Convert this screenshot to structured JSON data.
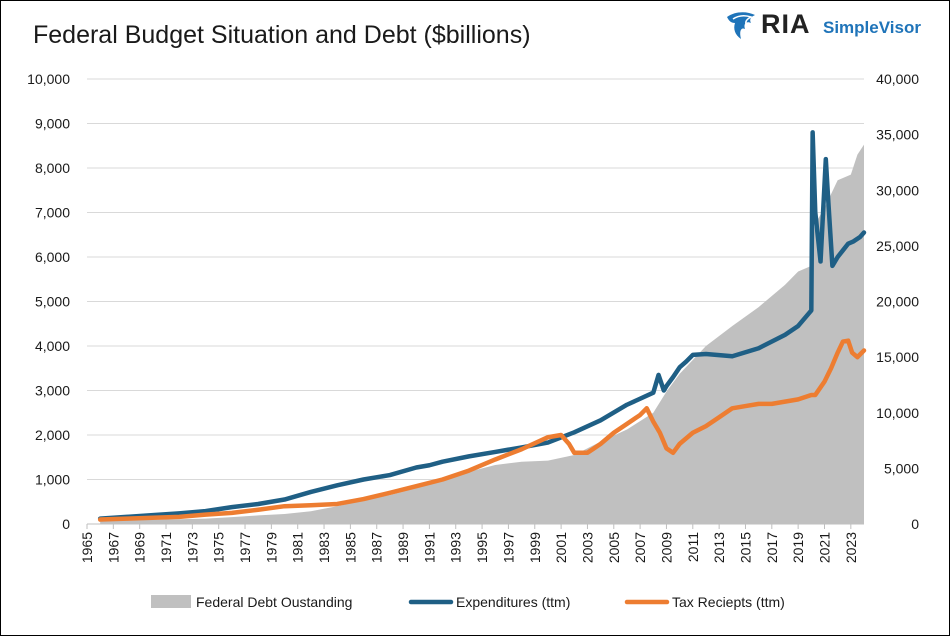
{
  "chart_data": {
    "type": "area+line",
    "title": "Federal Budget Situation and Debt ($billions)",
    "logo": {
      "brand": "RIA",
      "product": "SimpleVisor",
      "colors": {
        "brand": "#222222",
        "product": "#1f74b9",
        "mark": "#1f74b9"
      }
    },
    "xlim": [
      1965,
      2024
    ],
    "x_ticks": [
      "1965",
      "1967",
      "1969",
      "1971",
      "1973",
      "1975",
      "1977",
      "1979",
      "1981",
      "1983",
      "1985",
      "1987",
      "1989",
      "1991",
      "1993",
      "1995",
      "1997",
      "1999",
      "2001",
      "2003",
      "2005",
      "2007",
      "2009",
      "2011",
      "2013",
      "2015",
      "2017",
      "2019",
      "2021",
      "2023"
    ],
    "y_left": {
      "lim": [
        0,
        10000
      ],
      "ticks": [
        "0",
        "1,000",
        "2,000",
        "3,000",
        "4,000",
        "5,000",
        "6,000",
        "7,000",
        "8,000",
        "9,000",
        "10,000"
      ]
    },
    "y_right": {
      "lim": [
        0,
        40000
      ],
      "ticks": [
        "0",
        "5,000",
        "10,000",
        "15,000",
        "20,000",
        "25,000",
        "30,000",
        "35,000",
        "40,000"
      ]
    },
    "grid": true,
    "legend_position": "bottom",
    "series": [
      {
        "name": "Federal Debt Oustanding",
        "type": "area",
        "axis": "right",
        "color": "#c0c0c0",
        "x": [
          1966,
          1968,
          1970,
          1972,
          1974,
          1976,
          1978,
          1980,
          1982,
          1984,
          1986,
          1988,
          1990,
          1992,
          1994,
          1996,
          1998,
          2000,
          2002,
          2004,
          2006,
          2008,
          2009,
          2010,
          2012,
          2014,
          2016,
          2018,
          2019,
          2020,
          2020.25,
          2021,
          2022,
          2023,
          2023.5,
          2024
        ],
        "values": [
          320,
          350,
          380,
          430,
          480,
          620,
          770,
          900,
          1150,
          1600,
          2120,
          2600,
          3210,
          4000,
          4700,
          5300,
          5600,
          5700,
          6200,
          7400,
          8500,
          10000,
          11900,
          13500,
          16000,
          17800,
          19500,
          21500,
          22700,
          23200,
          26900,
          28400,
          30900,
          31400,
          33200,
          34100
        ]
      },
      {
        "name": "Expenditures (ttm)",
        "type": "line",
        "axis": "left",
        "color": "#1f5f85",
        "x": [
          1966,
          1968,
          1970,
          1972,
          1974,
          1976,
          1978,
          1980,
          1982,
          1984,
          1986,
          1988,
          1990,
          1991,
          1992,
          1994,
          1996,
          1998,
          2000,
          2002,
          2004,
          2006,
          2008,
          2008.4,
          2008.8,
          2009,
          2009.5,
          2010,
          2010.5,
          2011,
          2012,
          2014,
          2016,
          2018,
          2019,
          2020,
          2020.1,
          2020.3,
          2020.7,
          2021.1,
          2021.3,
          2021.6,
          2022,
          2022.4,
          2022.8,
          2023.2,
          2023.7,
          2024
        ],
        "values": [
          120,
          160,
          200,
          240,
          290,
          380,
          450,
          550,
          720,
          870,
          1000,
          1100,
          1270,
          1320,
          1400,
          1520,
          1620,
          1720,
          1830,
          2060,
          2330,
          2680,
          2950,
          3350,
          3000,
          3100,
          3300,
          3520,
          3650,
          3800,
          3820,
          3770,
          3950,
          4250,
          4450,
          4800,
          8800,
          7000,
          5900,
          8200,
          7200,
          5800,
          6000,
          6150,
          6300,
          6350,
          6450,
          6550
        ]
      },
      {
        "name": "Tax Reciepts (ttm)",
        "type": "line",
        "axis": "left",
        "color": "#ed7d31",
        "x": [
          1966,
          1968,
          1970,
          1972,
          1974,
          1976,
          1978,
          1980,
          1982,
          1984,
          1986,
          1988,
          1990,
          1992,
          1994,
          1996,
          1998,
          2000,
          2001,
          2001.6,
          2002,
          2003,
          2003.5,
          2004,
          2005,
          2006,
          2007,
          2007.5,
          2008,
          2008.5,
          2009,
          2009.5,
          2010,
          2011,
          2012,
          2013,
          2014,
          2015,
          2016,
          2017,
          2018,
          2019,
          2020,
          2020.3,
          2021,
          2021.5,
          2022,
          2022.4,
          2022.8,
          2023.1,
          2023.5,
          2024
        ],
        "values": [
          100,
          120,
          140,
          160,
          210,
          250,
          320,
          400,
          420,
          450,
          560,
          700,
          850,
          1000,
          1200,
          1450,
          1680,
          1950,
          2000,
          1800,
          1600,
          1600,
          1700,
          1800,
          2050,
          2250,
          2450,
          2600,
          2300,
          2050,
          1700,
          1600,
          1800,
          2050,
          2200,
          2400,
          2600,
          2650,
          2700,
          2700,
          2750,
          2800,
          2900,
          2900,
          3200,
          3500,
          3850,
          4100,
          4120,
          3850,
          3750,
          3900
        ]
      }
    ]
  }
}
